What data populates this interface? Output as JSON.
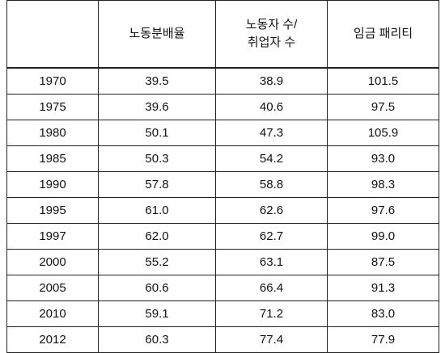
{
  "table": {
    "header": [
      "노동분배율",
      "노동자 수/\n취업자 수",
      "임금 패리티"
    ],
    "rows": [
      [
        "1970",
        "39.5",
        "38.9",
        "101.5"
      ],
      [
        "1975",
        "39.6",
        "40.6",
        "97.5"
      ],
      [
        "1980",
        "50.1",
        "47.3",
        "105.9"
      ],
      [
        "1985",
        "50.3",
        "54.2",
        "93.0"
      ],
      [
        "1990",
        "57.8",
        "58.8",
        "98.3"
      ],
      [
        "1995",
        "61.0",
        "62.6",
        "97.6"
      ],
      [
        "1997",
        "62.0",
        "62.7",
        "99.0"
      ],
      [
        "2000",
        "55.2",
        "63.1",
        "87.5"
      ],
      [
        "2005",
        "60.6",
        "66.4",
        "91.3"
      ],
      [
        "2010",
        "59.1",
        "71.2",
        "83.0"
      ],
      [
        "2012",
        "60.3",
        "77.4",
        "77.9"
      ]
    ]
  }
}
